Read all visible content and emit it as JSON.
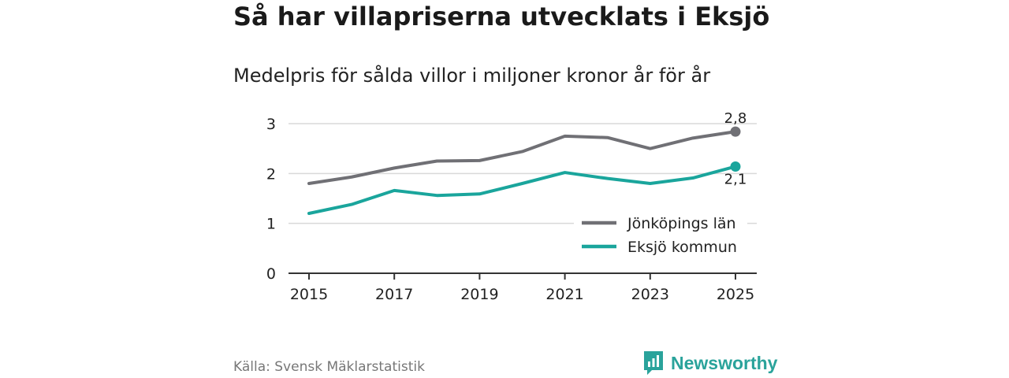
{
  "title": "Så har villapriserna utvecklats i Eksjö",
  "subtitle": "Medelpris för sålda villor i miljoner kronor år för år",
  "source": "Källa: Svensk Mäklarstatistik",
  "brand": {
    "name": "Newsworthy",
    "icon": "newsworthy-logo-icon",
    "color": "#2aa39b"
  },
  "colors": {
    "grid": "#d9d9d9",
    "axis": "#333333",
    "text": "#222222"
  },
  "chart_data": {
    "type": "line",
    "title": "Så har villapriserna utvecklats i Eksjö",
    "subtitle": "Medelpris för sålda villor i miljoner kronor år för år",
    "xlabel": "",
    "ylabel": "",
    "x": [
      2015,
      2016,
      2017,
      2018,
      2019,
      2020,
      2021,
      2022,
      2023,
      2024,
      2025
    ],
    "xticks": [
      "2015",
      "2017",
      "2019",
      "2021",
      "2023",
      "2025"
    ],
    "yticks": [
      "0",
      "1",
      "2",
      "3"
    ],
    "ylim": [
      0,
      3
    ],
    "grid": true,
    "legend": "bottom-right",
    "series": [
      {
        "name": "Jönköpings län",
        "color": "#707075",
        "values": [
          1.8,
          1.93,
          2.11,
          2.25,
          2.26,
          2.44,
          2.75,
          2.72,
          2.5,
          2.71,
          2.84
        ],
        "end_label": "2,8"
      },
      {
        "name": "Eksjö kommun",
        "color": "#1aa59c",
        "values": [
          1.2,
          1.38,
          1.66,
          1.56,
          1.59,
          1.8,
          2.02,
          1.9,
          1.8,
          1.91,
          2.14
        ],
        "end_label": "2,1"
      }
    ]
  }
}
